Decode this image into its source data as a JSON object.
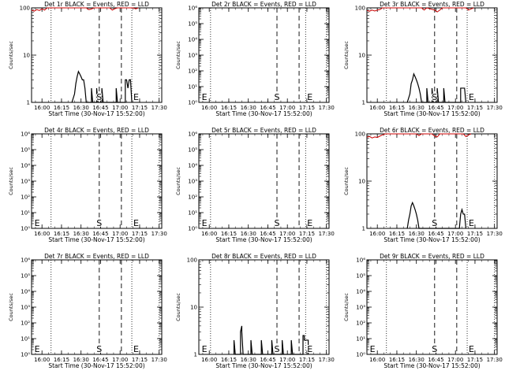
{
  "page": {
    "background": "#ffffff",
    "events_color": "#000000",
    "lld_color": "#cc0000"
  },
  "chart_data": [
    {
      "type": "line",
      "title": "Det 1r BLACK = Events, RED = LLD",
      "xlabel": "Start Time (30-Nov-17 15:52:00)",
      "ylabel": "Counts/sec",
      "xticks": [
        "16:00",
        "16:15",
        "16:30",
        "16:45",
        "17:00",
        "17:15",
        "17:30"
      ],
      "yscale": "log",
      "ylim": [
        1,
        100
      ],
      "yticks": [
        "1",
        "10",
        "100"
      ],
      "markers": {
        "dotted": [
          "16:07",
          "17:09",
          "17:30"
        ],
        "dashed": [
          "16:44",
          "17:01"
        ],
        "labels": [
          {
            "text": "S",
            "at": "16:44"
          },
          {
            "text": "E",
            "at": "17:09"
          }
        ]
      },
      "series": [
        {
          "points": [
            [
              "16:23",
              1
            ],
            [
              "16:25",
              1.5
            ],
            [
              "16:26",
              2.5
            ],
            [
              "16:27",
              3.5
            ],
            [
              "16:28",
              4.5
            ],
            [
              "16:29",
              4
            ],
            [
              "16:30",
              3.5
            ],
            [
              "16:31",
              3
            ],
            [
              "16:32",
              3
            ],
            [
              "16:33",
              2
            ],
            [
              "16:34",
              1
            ],
            [
              "16:38",
              1
            ],
            [
              "16:38",
              2
            ],
            [
              "16:39",
              1
            ],
            [
              "16:42",
              1
            ],
            [
              "16:42",
              2
            ],
            [
              "16:43",
              1
            ],
            [
              "16:46",
              1
            ],
            [
              "16:46",
              2
            ],
            [
              "16:47",
              1
            ],
            [
              "16:57",
              1
            ],
            [
              "16:57",
              2
            ],
            [
              "16:58",
              1
            ],
            [
              "17:04",
              1
            ],
            [
              "17:04",
              3
            ],
            [
              "17:05",
              3
            ],
            [
              "17:06",
              2
            ],
            [
              "17:07",
              3
            ],
            [
              "17:08",
              3
            ],
            [
              "17:09",
              1
            ]
          ]
        },
        {
          "color": "red",
          "points": [
            [
              "15:52",
              90
            ],
            [
              "15:54",
              85
            ],
            [
              "15:56",
              92
            ],
            [
              "15:58",
              88
            ],
            [
              "16:00",
              95
            ],
            [
              "16:02",
              90
            ],
            [
              "16:04",
              100
            ],
            [
              "16:34",
              100
            ],
            [
              "16:36",
              92
            ],
            [
              "16:38",
              95
            ],
            [
              "16:40",
              100
            ],
            [
              "16:52",
              100
            ],
            [
              "16:54",
              90
            ],
            [
              "16:56",
              96
            ],
            [
              "16:58",
              100
            ],
            [
              "17:10",
              100
            ],
            [
              "17:12",
              95
            ],
            [
              "17:14",
              100
            ]
          ]
        }
      ]
    },
    {
      "type": "line",
      "title": "Det 2r BLACK = Events, RED = LLD",
      "xlabel": "Start Time (30-Nov-17 15:52:00)",
      "ylabel": "Counts/sec",
      "xticks": [
        "16:00",
        "16:15",
        "16:30",
        "16:45",
        "17:00",
        "17:15",
        "17:30"
      ],
      "yscale": "log",
      "ylim": [
        1,
        1000000
      ],
      "yticks": [
        "10⁰",
        "10¹",
        "10²",
        "10³",
        "10⁴",
        "10⁵",
        "10⁶"
      ],
      "markers": {
        "dotted": [
          "16:01",
          "17:14",
          "17:30"
        ],
        "dashed": [
          "16:52",
          "17:09"
        ],
        "labels": [
          {
            "text": "E",
            "at": "15:53"
          },
          {
            "text": "S",
            "at": "16:52"
          },
          {
            "text": "E",
            "at": "17:14"
          }
        ]
      },
      "series": []
    },
    {
      "type": "line",
      "title": "Det 3r BLACK = Events, RED = LLD",
      "xlabel": "Start Time (30-Nov-17 15:52:00)",
      "ylabel": "Counts/sec",
      "xticks": [
        "16:00",
        "16:15",
        "16:30",
        "16:45",
        "17:00",
        "17:15",
        "17:30"
      ],
      "yscale": "log",
      "ylim": [
        1,
        100
      ],
      "yticks": [
        "1",
        "10",
        "100"
      ],
      "markers": {
        "dotted": [
          "16:07",
          "17:09",
          "17:30"
        ],
        "dashed": [
          "16:44",
          "17:01"
        ],
        "labels": [
          {
            "text": "S",
            "at": "16:44"
          },
          {
            "text": "E",
            "at": "17:09"
          }
        ]
      },
      "series": [
        {
          "points": [
            [
              "16:23",
              1
            ],
            [
              "16:25",
              1.5
            ],
            [
              "16:26",
              2.5
            ],
            [
              "16:27",
              3
            ],
            [
              "16:28",
              4
            ],
            [
              "16:29",
              3.5
            ],
            [
              "16:30",
              3
            ],
            [
              "16:31",
              2.5
            ],
            [
              "16:32",
              2
            ],
            [
              "16:33",
              1.5
            ],
            [
              "16:34",
              1
            ],
            [
              "16:38",
              1
            ],
            [
              "16:38",
              2
            ],
            [
              "16:39",
              1
            ],
            [
              "16:42",
              1
            ],
            [
              "16:42",
              2
            ],
            [
              "16:43",
              1
            ],
            [
              "16:46",
              1
            ],
            [
              "16:46",
              2
            ],
            [
              "16:47",
              1
            ],
            [
              "16:51",
              1
            ],
            [
              "16:51",
              2
            ],
            [
              "16:52",
              1
            ],
            [
              "17:04",
              1
            ],
            [
              "17:04",
              2
            ],
            [
              "17:05",
              2
            ],
            [
              "17:06",
              2
            ],
            [
              "17:07",
              2
            ],
            [
              "17:08",
              1
            ]
          ]
        },
        {
          "color": "red",
          "points": [
            [
              "15:52",
              88
            ],
            [
              "15:54",
              85
            ],
            [
              "15:56",
              90
            ],
            [
              "15:58",
              86
            ],
            [
              "16:00",
              90
            ],
            [
              "16:02",
              92
            ],
            [
              "16:04",
              100
            ],
            [
              "16:34",
              100
            ],
            [
              "16:36",
              90
            ],
            [
              "16:38",
              100
            ],
            [
              "16:44",
              90
            ],
            [
              "16:46",
              82
            ],
            [
              "16:48",
              90
            ],
            [
              "16:50",
              100
            ],
            [
              "17:08",
              100
            ],
            [
              "17:10",
              90
            ],
            [
              "17:12",
              95
            ],
            [
              "17:14",
              100
            ]
          ]
        }
      ]
    },
    {
      "type": "line",
      "title": "Det 4r BLACK = Events, RED = LLD",
      "xlabel": "Start Time (30-Nov-17 15:52:00)",
      "ylabel": "Counts/sec",
      "xticks": [
        "16:00",
        "16:15",
        "16:30",
        "16:45",
        "17:00",
        "17:15",
        "17:30"
      ],
      "yscale": "log",
      "ylim": [
        1,
        1000000
      ],
      "yticks": [
        "10⁰",
        "10¹",
        "10²",
        "10³",
        "10⁴",
        "10⁵",
        "10⁶"
      ],
      "markers": {
        "dotted": [
          "16:07",
          "17:09",
          "17:30"
        ],
        "dashed": [
          "16:44",
          "17:01"
        ],
        "labels": [
          {
            "text": "E",
            "at": "15:53"
          },
          {
            "text": "S",
            "at": "16:44"
          },
          {
            "text": "E",
            "at": "17:09"
          }
        ]
      },
      "series": []
    },
    {
      "type": "line",
      "title": "Det 5r BLACK = Events, RED = LLD",
      "xlabel": "Start Time (30-Nov-17 15:52:00)",
      "ylabel": "Counts/sec",
      "xticks": [
        "16:00",
        "16:15",
        "16:30",
        "16:45",
        "17:00",
        "17:15",
        "17:30"
      ],
      "yscale": "log",
      "ylim": [
        1,
        1000000
      ],
      "yticks": [
        "10⁰",
        "10¹",
        "10²",
        "10³",
        "10⁴",
        "10⁵",
        "10⁶"
      ],
      "markers": {
        "dotted": [
          "16:01",
          "17:14",
          "17:30"
        ],
        "dashed": [
          "16:52",
          "17:09"
        ],
        "labels": [
          {
            "text": "E",
            "at": "15:53"
          },
          {
            "text": "S",
            "at": "16:52"
          },
          {
            "text": "E",
            "at": "17:14"
          }
        ]
      },
      "series": []
    },
    {
      "type": "line",
      "title": "Det 6r BLACK = Events, RED = LLD",
      "xlabel": "Start Time (30-Nov-17 15:52:00)",
      "ylabel": "Counts/sec",
      "xticks": [
        "16:00",
        "16:15",
        "16:30",
        "16:45",
        "17:00",
        "17:15",
        "17:30"
      ],
      "yscale": "log",
      "ylim": [
        1,
        100
      ],
      "yticks": [
        "1",
        "10",
        "100"
      ],
      "markers": {
        "dotted": [
          "16:07",
          "17:09",
          "17:30"
        ],
        "dashed": [
          "16:44",
          "17:01"
        ],
        "labels": [
          {
            "text": "S",
            "at": "16:44"
          },
          {
            "text": "E",
            "at": "17:09"
          }
        ]
      },
      "series": [
        {
          "points": [
            [
              "16:23",
              1
            ],
            [
              "16:24",
              1.5
            ],
            [
              "16:25",
              2
            ],
            [
              "16:26",
              3
            ],
            [
              "16:27",
              3.5
            ],
            [
              "16:28",
              3
            ],
            [
              "16:29",
              2.5
            ],
            [
              "16:30",
              2
            ],
            [
              "16:31",
              1.5
            ],
            [
              "16:32",
              1
            ],
            [
              "17:03",
              1
            ],
            [
              "17:04",
              2
            ],
            [
              "17:05",
              2.5
            ],
            [
              "17:06",
              2
            ],
            [
              "17:07",
              2
            ],
            [
              "17:08",
              1
            ]
          ]
        },
        {
          "color": "red",
          "points": [
            [
              "15:52",
              85
            ],
            [
              "15:54",
              88
            ],
            [
              "15:56",
              82
            ],
            [
              "15:58",
              86
            ],
            [
              "16:00",
              84
            ],
            [
              "16:02",
              90
            ],
            [
              "16:04",
              95
            ],
            [
              "16:06",
              100
            ],
            [
              "16:30",
              100
            ],
            [
              "16:32",
              92
            ],
            [
              "16:34",
              100
            ],
            [
              "16:42",
              100
            ],
            [
              "16:44",
              90
            ],
            [
              "16:46",
              86
            ],
            [
              "16:48",
              100
            ],
            [
              "17:06",
              100
            ],
            [
              "17:08",
              88
            ],
            [
              "17:10",
              95
            ],
            [
              "17:12",
              100
            ]
          ]
        }
      ]
    },
    {
      "type": "line",
      "title": "Det 7r BLACK = Events, RED = LLD",
      "xlabel": "Start Time (30-Nov-17 15:52:00)",
      "ylabel": "Counts/sec",
      "xticks": [
        "16:00",
        "16:15",
        "16:30",
        "16:45",
        "17:00",
        "17:15",
        "17:30"
      ],
      "yscale": "log",
      "ylim": [
        1,
        1000000
      ],
      "yticks": [
        "10⁰",
        "10¹",
        "10²",
        "10³",
        "10⁴",
        "10⁵",
        "10⁶"
      ],
      "markers": {
        "dotted": [
          "16:07",
          "17:09",
          "17:30"
        ],
        "dashed": [
          "16:44",
          "17:01"
        ],
        "labels": [
          {
            "text": "E",
            "at": "15:53"
          },
          {
            "text": "S",
            "at": "16:44"
          },
          {
            "text": "E",
            "at": "17:09"
          }
        ]
      },
      "series": []
    },
    {
      "type": "line",
      "title": "Det 8r BLACK = Events, RED = LLD",
      "xlabel": "Start Time (30-Nov-17 15:52:00)",
      "ylabel": "Counts/sec",
      "xticks": [
        "16:00",
        "16:15",
        "16:30",
        "16:45",
        "17:00",
        "17:15",
        "17:30"
      ],
      "yscale": "log",
      "ylim": [
        1,
        100
      ],
      "yticks": [
        "1",
        "10",
        "100"
      ],
      "markers": {
        "dotted": [
          "16:01",
          "17:14",
          "17:30"
        ],
        "dashed": [
          "16:52",
          "17:09"
        ],
        "labels": [
          {
            "text": "E",
            "at": "15:53"
          },
          {
            "text": "S",
            "at": "16:52"
          },
          {
            "text": "E",
            "at": "17:14"
          }
        ]
      },
      "series": [
        {
          "points": [
            [
              "16:19",
              1
            ],
            [
              "16:19",
              2
            ],
            [
              "16:20",
              1
            ],
            [
              "16:24",
              1
            ],
            [
              "16:24",
              3
            ],
            [
              "16:25",
              4
            ],
            [
              "16:25",
              3
            ],
            [
              "16:26",
              1
            ],
            [
              "16:32",
              1
            ],
            [
              "16:32",
              2
            ],
            [
              "16:33",
              1
            ],
            [
              "16:40",
              1
            ],
            [
              "16:40",
              2
            ],
            [
              "16:41",
              1
            ],
            [
              "16:48",
              1
            ],
            [
              "16:48",
              2
            ],
            [
              "16:49",
              1
            ],
            [
              "16:56",
              1
            ],
            [
              "16:56",
              2
            ],
            [
              "16:57",
              1
            ],
            [
              "17:03",
              1
            ],
            [
              "17:03",
              2
            ],
            [
              "17:04",
              1
            ],
            [
              "17:12",
              1
            ],
            [
              "17:12",
              2.5
            ],
            [
              "17:13",
              2.5
            ],
            [
              "17:13",
              2
            ],
            [
              "17:16",
              2
            ],
            [
              "17:16",
              1
            ]
          ]
        }
      ]
    },
    {
      "type": "line",
      "title": "Det 9r BLACK = Events, RED = LLD",
      "xlabel": "Start Time (30-Nov-17 15:52:00)",
      "ylabel": "Counts/sec",
      "xticks": [
        "16:00",
        "16:15",
        "16:30",
        "16:45",
        "17:00",
        "17:15",
        "17:30"
      ],
      "yscale": "log",
      "ylim": [
        1,
        1000000
      ],
      "yticks": [
        "10⁰",
        "10¹",
        "10²",
        "10³",
        "10⁴",
        "10⁵",
        "10⁶"
      ],
      "markers": {
        "dotted": [
          "16:07",
          "17:09",
          "17:30"
        ],
        "dashed": [
          "16:44",
          "17:01"
        ],
        "labels": [
          {
            "text": "E",
            "at": "15:53"
          },
          {
            "text": "S",
            "at": "16:44"
          },
          {
            "text": "E",
            "at": "17:09"
          }
        ]
      },
      "series": []
    }
  ]
}
